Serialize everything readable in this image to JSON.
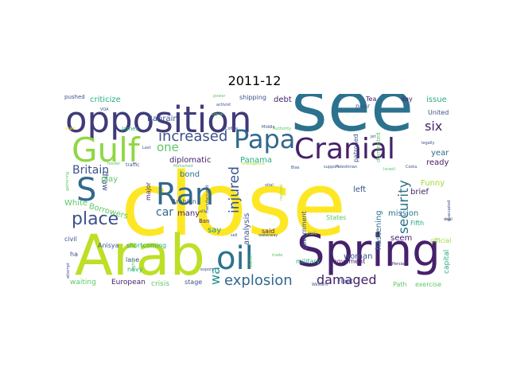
{
  "title": "2011-12",
  "palette": {
    "dark_purple": "#46216b",
    "purple": "#3f3b7a",
    "blue_dark": "#3b528b",
    "blue": "#31688e",
    "teal": "#2c728e",
    "teal2": "#21908d",
    "green_teal": "#27ad81",
    "green": "#5dc863",
    "lime": "#a0da39",
    "yellow": "#fde725"
  },
  "words": [
    {
      "text": "close",
      "color": "#fde725"
    },
    {
      "text": "see",
      "color": "#2c728e"
    },
    {
      "text": "Arab",
      "color": "#bddf26"
    },
    {
      "text": "Spring",
      "color": "#46216b"
    },
    {
      "text": "opposition",
      "color": "#3f3b7a"
    },
    {
      "text": "Cranial",
      "color": "#46216b"
    },
    {
      "text": "Gulf",
      "color": "#8fd744"
    },
    {
      "text": "Papa",
      "color": "#31688e"
    },
    {
      "text": "Ran",
      "color": "#31688e"
    },
    {
      "text": "oil",
      "color": "#2c728e"
    },
    {
      "text": "S",
      "color": "#31688e"
    },
    {
      "text": "place",
      "color": "#3b528b"
    },
    {
      "text": "increased",
      "color": "#3b528b"
    },
    {
      "text": "explosion",
      "color": "#31688e"
    },
    {
      "text": "damaged",
      "color": "#46216b"
    },
    {
      "text": "security",
      "color": "#2c728e"
    },
    {
      "text": "injured",
      "color": "#3b528b"
    },
    {
      "text": "Britain",
      "color": "#3b528b"
    },
    {
      "text": "one",
      "color": "#5dc863"
    },
    {
      "text": "six",
      "color": "#46216b"
    },
    {
      "text": "car",
      "color": "#31688e"
    },
    {
      "text": "wa",
      "color": "#21908d"
    },
    {
      "text": "Bahrain",
      "color": "#3b528b"
    },
    {
      "text": "criticize",
      "color": "#27ad81"
    },
    {
      "text": "shipping",
      "color": "#3b528b"
    },
    {
      "text": "debt",
      "color": "#46216b"
    },
    {
      "text": "issue",
      "color": "#27ad81"
    },
    {
      "text": "diplomatic",
      "color": "#46216b"
    },
    {
      "text": "Panama",
      "color": "#27ad81"
    },
    {
      "text": "year",
      "color": "#31688e"
    },
    {
      "text": "ready",
      "color": "#46216b"
    },
    {
      "text": "Funny",
      "color": "#a0da39"
    },
    {
      "text": "bond",
      "color": "#2c728e"
    },
    {
      "text": "draw",
      "color": "#3b528b"
    },
    {
      "text": "play",
      "color": "#5dc863"
    },
    {
      "text": "White",
      "color": "#5dc863"
    },
    {
      "text": "Borrowers",
      "color": "#5dc863"
    },
    {
      "text": "Arabian",
      "color": "#3b528b"
    },
    {
      "text": "many",
      "color": "#46216b"
    },
    {
      "text": "major",
      "color": "#46216b"
    },
    {
      "text": "hastening",
      "color": "#2c728e"
    },
    {
      "text": "mission",
      "color": "#2c728e"
    },
    {
      "text": "brief",
      "color": "#46216b"
    },
    {
      "text": "left",
      "color": "#3b528b"
    },
    {
      "text": "woman",
      "color": "#3b528b"
    },
    {
      "text": "analysis",
      "color": "#3b528b"
    },
    {
      "text": "said",
      "color": "#46216b"
    },
    {
      "text": "say",
      "color": "#21908d"
    },
    {
      "text": "seem",
      "color": "#46216b"
    },
    {
      "text": "capital",
      "color": "#27ad81"
    },
    {
      "text": "shortcoming",
      "color": "#27ad81"
    },
    {
      "text": "Anisya",
      "color": "#3b528b"
    },
    {
      "text": "civil",
      "color": "#3b528b"
    },
    {
      "text": "ha",
      "color": "#3b528b"
    },
    {
      "text": "lane",
      "color": "#3b528b"
    },
    {
      "text": "navy",
      "color": "#27ad81"
    },
    {
      "text": "military",
      "color": "#27ad81"
    },
    {
      "text": "movement",
      "color": "#46216b"
    },
    {
      "text": "official",
      "color": "#a0da39"
    },
    {
      "text": "waiting",
      "color": "#5dc863"
    },
    {
      "text": "European",
      "color": "#46216b"
    },
    {
      "text": "crisis",
      "color": "#5dc863"
    },
    {
      "text": "stage",
      "color": "#3b528b"
    },
    {
      "text": "Fleet",
      "color": "#3b528b"
    },
    {
      "text": "Path",
      "color": "#5dc863"
    },
    {
      "text": "exercise",
      "color": "#5dc863"
    },
    {
      "text": "government",
      "color": "#3b528b"
    },
    {
      "text": "States",
      "color": "#5dc863"
    },
    {
      "text": "Fifth",
      "color": "#27ad81"
    },
    {
      "text": "United",
      "color": "#3b528b"
    },
    {
      "text": "day",
      "color": "#46216b"
    },
    {
      "text": "Tea",
      "color": "#46216b"
    },
    {
      "text": "near",
      "color": "#3b528b"
    },
    {
      "text": "patrolled",
      "color": "#3b528b"
    },
    {
      "text": "dominated",
      "color": "#5dc863"
    },
    {
      "text": "pushed",
      "color": "#3b528b"
    },
    {
      "text": "James",
      "color": "#27ad81"
    },
    {
      "text": "traffic",
      "color": "#3b528b"
    },
    {
      "text": "Ban",
      "color": "#46216b"
    },
    {
      "text": "visit",
      "color": "#a0da39"
    },
    {
      "text": "power",
      "color": "#5dc863"
    },
    {
      "text": "signal",
      "color": "#5dc863"
    },
    {
      "text": "Middle",
      "color": "#3b528b"
    },
    {
      "text": "Authority",
      "color": "#5dc863"
    },
    {
      "text": "Coffee",
      "color": "#3b528b"
    },
    {
      "text": "vital",
      "color": "#3b528b"
    },
    {
      "text": "Bias",
      "color": "#3b528b"
    },
    {
      "text": "support",
      "color": "#3b528b"
    },
    {
      "text": "Palestinian",
      "color": "#3b528b"
    },
    {
      "text": "Costa",
      "color": "#3b528b"
    },
    {
      "text": "Israeli",
      "color": "#5dc863"
    },
    {
      "text": "Persian",
      "color": "#46216b"
    },
    {
      "text": "deal",
      "color": "#46216b"
    },
    {
      "text": "evacuated",
      "color": "#3b528b"
    },
    {
      "text": "legally",
      "color": "#3b528b"
    },
    {
      "text": "jet",
      "color": "#3b528b"
    },
    {
      "text": "waterway",
      "color": "#3b528b"
    },
    {
      "text": "sell",
      "color": "#3b528b"
    },
    {
      "text": "Western",
      "color": "#3b528b"
    },
    {
      "text": "trade",
      "color": "#5dc863"
    },
    {
      "text": "Mohamed",
      "color": "#5dc863"
    },
    {
      "text": "attempt",
      "color": "#3b528b"
    },
    {
      "text": "export",
      "color": "#3b528b"
    },
    {
      "text": "gathering",
      "color": "#5dc863"
    },
    {
      "text": "fighter",
      "color": "#5dc863"
    },
    {
      "text": "feeder",
      "color": "#5dc863"
    },
    {
      "text": "Last",
      "color": "#3b528b"
    },
    {
      "text": "VOA",
      "color": "#3b528b"
    },
    {
      "text": "scale",
      "color": "#fde725"
    },
    {
      "text": "manufactured",
      "color": "#3b528b"
    },
    {
      "text": "ally",
      "color": "#3b528b"
    },
    {
      "text": "activist",
      "color": "#3b528b"
    },
    {
      "text": "intelligence",
      "color": "#a0da39"
    },
    {
      "text": "regional",
      "color": "#a0da39"
    },
    {
      "text": "relation",
      "color": "#5dc863"
    }
  ]
}
